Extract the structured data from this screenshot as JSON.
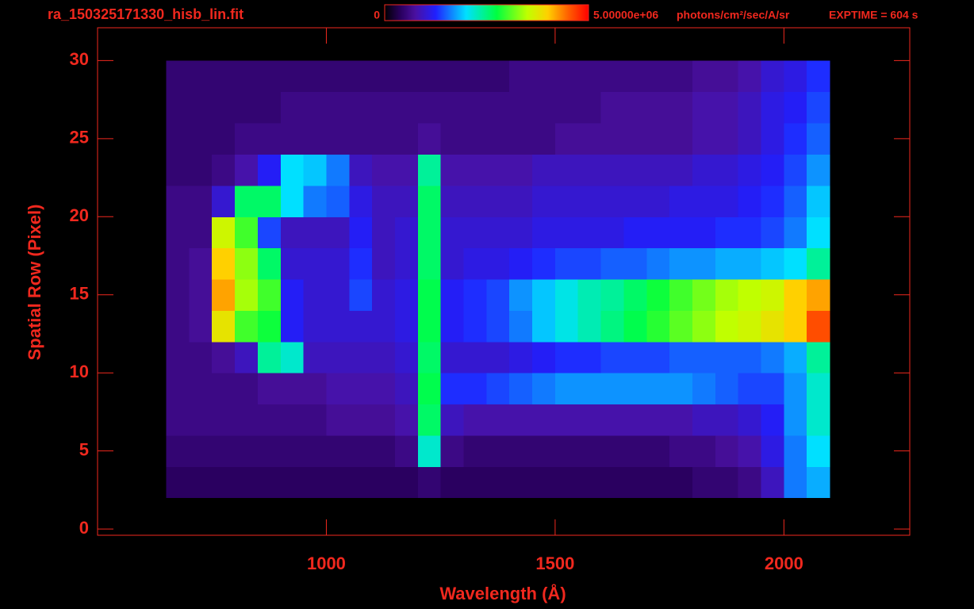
{
  "chart_data": {
    "type": "heatmap",
    "title": "ra_150325171330_hisb_lin.fit",
    "annotation": "EXPTIME = 604 s",
    "x_label": "Wavelength (Å)",
    "y_label": "Spatial Row (Pixel)",
    "xlim": [
      500,
      2275
    ],
    "xticks": [
      1000,
      1500,
      2000
    ],
    "ylim": [
      -0.4,
      32.1
    ],
    "yticks": [
      0,
      5,
      10,
      15,
      20,
      25,
      30
    ],
    "zlim": [
      0,
      5000000
    ],
    "colorbar_ticks": [
      0,
      {
        "value": 5000000,
        "label": "5.00000e+06"
      }
    ],
    "colorbar_unit": "photons/cm²/sec/A/sr",
    "x_edges": [
      650,
      700,
      750,
      800,
      850,
      900,
      950,
      1000,
      1050,
      1100,
      1150,
      1200,
      1250,
      1300,
      1350,
      1400,
      1450,
      1500,
      1550,
      1600,
      1650,
      1700,
      1750,
      1800,
      1850,
      1900,
      1950,
      2000,
      2050,
      2100
    ],
    "y_edges": [
      2,
      4,
      6,
      8,
      10,
      12,
      14,
      16,
      18,
      20,
      22,
      24,
      26,
      28,
      30
    ],
    "z": [
      [
        400000.0,
        400000.0,
        400000.0,
        400000.0,
        400000.0,
        400000.0,
        400000.0,
        400000.0,
        400000.0,
        400000.0,
        400000.0,
        500000.0,
        400000.0,
        400000.0,
        400000.0,
        400000.0,
        400000.0,
        400000.0,
        400000.0,
        400000.0,
        400000.0,
        400000.0,
        400000.0,
        500000.0,
        500000.0,
        600000.0,
        900000.0,
        1600000.0,
        1800000.0
      ],
      [
        500000.0,
        500000.0,
        500000.0,
        500000.0,
        500000.0,
        500000.0,
        500000.0,
        500000.0,
        500000.0,
        500000.0,
        600000.0,
        2200000.0,
        600000.0,
        500000.0,
        500000.0,
        500000.0,
        500000.0,
        500000.0,
        500000.0,
        500000.0,
        500000.0,
        500000.0,
        600000.0,
        600000.0,
        700000.0,
        800000.0,
        1100000.0,
        1600000.0,
        2000000.0
      ],
      [
        600000.0,
        600000.0,
        600000.0,
        600000.0,
        600000.0,
        600000.0,
        600000.0,
        700000.0,
        700000.0,
        700000.0,
        800000.0,
        2600000.0,
        900000.0,
        800000.0,
        800000.0,
        800000.0,
        800000.0,
        800000.0,
        800000.0,
        800000.0,
        800000.0,
        800000.0,
        800000.0,
        900000.0,
        900000.0,
        1000000.0,
        1200000.0,
        1700000.0,
        2200000.0
      ],
      [
        600000.0,
        600000.0,
        600000.0,
        600000.0,
        700000.0,
        700000.0,
        700000.0,
        800000.0,
        800000.0,
        800000.0,
        900000.0,
        2700000.0,
        1300000.0,
        1300000.0,
        1400000.0,
        1500000.0,
        1600000.0,
        1700000.0,
        1700000.0,
        1700000.0,
        1700000.0,
        1700000.0,
        1700000.0,
        1600000.0,
        1500000.0,
        1400000.0,
        1400000.0,
        1700000.0,
        2200000.0
      ],
      [
        600000.0,
        600000.0,
        700000.0,
        900000.0,
        2400000.0,
        2200000.0,
        900000.0,
        900000.0,
        900000.0,
        900000.0,
        1000000.0,
        2600000.0,
        1000000.0,
        1000000.0,
        1000000.0,
        1100000.0,
        1200000.0,
        1300000.0,
        1300000.0,
        1400000.0,
        1400000.0,
        1400000.0,
        1500000.0,
        1500000.0,
        1500000.0,
        1500000.0,
        1600000.0,
        1800000.0,
        2400000.0
      ],
      [
        600000.0,
        700000.0,
        3800000.0,
        3000000.0,
        2800000.0,
        1200000.0,
        1000000.0,
        1000000.0,
        1000000.0,
        1000000.0,
        1100000.0,
        2700000.0,
        1200000.0,
        1300000.0,
        1400000.0,
        1600000.0,
        1900000.0,
        2100000.0,
        2300000.0,
        2500000.0,
        2700000.0,
        2900000.0,
        3100000.0,
        3300000.0,
        3500000.0,
        3600000.0,
        3800000.0,
        4000000.0,
        4600000.0
      ],
      [
        600000.0,
        700000.0,
        4200000.0,
        3400000.0,
        3000000.0,
        1200000.0,
        1000000.0,
        1000000.0,
        1400000.0,
        1000000.0,
        1100000.0,
        2700000.0,
        1200000.0,
        1300000.0,
        1400000.0,
        1700000.0,
        1900000.0,
        2100000.0,
        2300000.0,
        2400000.0,
        2600000.0,
        2800000.0,
        3000000.0,
        3200000.0,
        3400000.0,
        3500000.0,
        3600000.0,
        4000000.0,
        4200000.0
      ],
      [
        600000.0,
        700000.0,
        4000000.0,
        3300000.0,
        2600000.0,
        1000000.0,
        1000000.0,
        1000000.0,
        1300000.0,
        900000.0,
        1000000.0,
        2600000.0,
        1000000.0,
        1100000.0,
        1100000.0,
        1200000.0,
        1300000.0,
        1400000.0,
        1400000.0,
        1500000.0,
        1500000.0,
        1600000.0,
        1700000.0,
        1700000.0,
        1800000.0,
        1800000.0,
        1900000.0,
        2000000.0,
        2400000.0
      ],
      [
        600000.0,
        600000.0,
        3600000.0,
        3000000.0,
        1400000.0,
        900000.0,
        900000.0,
        900000.0,
        1200000.0,
        900000.0,
        1000000.0,
        2600000.0,
        1000000.0,
        1000000.0,
        1000000.0,
        1000000.0,
        1100000.0,
        1100000.0,
        1100000.0,
        1100000.0,
        1200000.0,
        1200000.0,
        1200000.0,
        1200000.0,
        1300000.0,
        1300000.0,
        1400000.0,
        1600000.0,
        2000000.0
      ],
      [
        600000.0,
        600000.0,
        1000000.0,
        2600000.0,
        2600000.0,
        2000000.0,
        1600000.0,
        1500000.0,
        1100000.0,
        900000.0,
        900000.0,
        2600000.0,
        900000.0,
        900000.0,
        900000.0,
        900000.0,
        1000000.0,
        1000000.0,
        1000000.0,
        1000000.0,
        1000000.0,
        1000000.0,
        1100000.0,
        1100000.0,
        1100000.0,
        1200000.0,
        1300000.0,
        1500000.0,
        1900000.0
      ],
      [
        500000.0,
        500000.0,
        600000.0,
        800000.0,
        1200000.0,
        2000000.0,
        1900000.0,
        1600000.0,
        900000.0,
        800000.0,
        800000.0,
        2400000.0,
        800000.0,
        800000.0,
        800000.0,
        800000.0,
        900000.0,
        900000.0,
        900000.0,
        900000.0,
        900000.0,
        900000.0,
        900000.0,
        1000000.0,
        1000000.0,
        1100000.0,
        1200000.0,
        1400000.0,
        1700000.0
      ],
      [
        500000.0,
        500000.0,
        500000.0,
        600000.0,
        600000.0,
        600000.0,
        600000.0,
        600000.0,
        600000.0,
        600000.0,
        600000.0,
        700000.0,
        600000.0,
        600000.0,
        600000.0,
        600000.0,
        600000.0,
        700000.0,
        700000.0,
        700000.0,
        700000.0,
        700000.0,
        700000.0,
        800000.0,
        800000.0,
        900000.0,
        1100000.0,
        1300000.0,
        1500000.0
      ],
      [
        500000.0,
        500000.0,
        500000.0,
        500000.0,
        500000.0,
        600000.0,
        600000.0,
        600000.0,
        600000.0,
        600000.0,
        600000.0,
        600000.0,
        600000.0,
        600000.0,
        600000.0,
        600000.0,
        600000.0,
        600000.0,
        600000.0,
        700000.0,
        700000.0,
        700000.0,
        700000.0,
        800000.0,
        800000.0,
        900000.0,
        1100000.0,
        1200000.0,
        1400000.0
      ],
      [
        500000.0,
        500000.0,
        500000.0,
        500000.0,
        500000.0,
        500000.0,
        500000.0,
        500000.0,
        500000.0,
        500000.0,
        500000.0,
        500000.0,
        500000.0,
        500000.0,
        500000.0,
        600000.0,
        600000.0,
        600000.0,
        600000.0,
        600000.0,
        600000.0,
        600000.0,
        600000.0,
        700000.0,
        700000.0,
        800000.0,
        1000000.0,
        1100000.0,
        1300000.0
      ]
    ]
  }
}
